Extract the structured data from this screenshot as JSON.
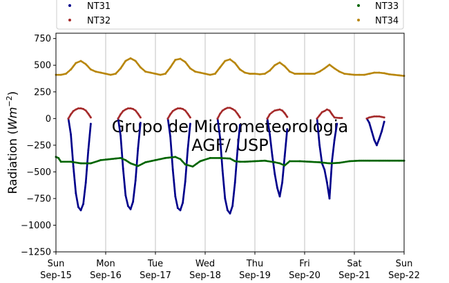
{
  "chart_data": {
    "type": "scatter",
    "ylabel_main": "Radiation (",
    "ylabel_unit_base": "Wm",
    "ylabel_unit_exp": "−2",
    "ylabel_close": ")",
    "xlabel": "",
    "ylim": [
      -1250,
      800
    ],
    "xlim": [
      0,
      7
    ],
    "grid": "vertical-only",
    "legend_location": "top",
    "watermark_lines": [
      "Grupo de Micrometeorologia",
      "AGF/ USP"
    ],
    "x_ticks": [
      {
        "day": "Sun",
        "date": "Sep-15",
        "x": 0
      },
      {
        "day": "Mon",
        "date": "Sep-16",
        "x": 1
      },
      {
        "day": "Tue",
        "date": "Sep-17",
        "x": 2
      },
      {
        "day": "Wed",
        "date": "Sep-18",
        "x": 3
      },
      {
        "day": "Thu",
        "date": "Sep-19",
        "x": 4
      },
      {
        "day": "Fri",
        "date": "Sep-20",
        "x": 5
      },
      {
        "day": "Sat",
        "date": "Sep-21",
        "x": 6
      },
      {
        "day": "Sun",
        "date": "Sep-22",
        "x": 7
      }
    ],
    "y_ticks": [
      750,
      500,
      250,
      0,
      -250,
      -500,
      -750,
      -1000,
      -1250
    ],
    "y_tick_labels": [
      "750",
      "500",
      "250",
      "0",
      "−250",
      "−500",
      "−750",
      "−1000",
      "−1250"
    ],
    "series": [
      {
        "name": "NT31",
        "color": "#00008b",
        "points": [
          [
            0.25,
            0
          ],
          [
            0.3,
            -150
          ],
          [
            0.35,
            -450
          ],
          [
            0.4,
            -700
          ],
          [
            0.45,
            -830
          ],
          [
            0.5,
            -860
          ],
          [
            0.55,
            -800
          ],
          [
            0.6,
            -600
          ],
          [
            0.65,
            -300
          ],
          [
            0.7,
            -50
          ],
          [
            1.25,
            0
          ],
          [
            1.3,
            -160
          ],
          [
            1.35,
            -470
          ],
          [
            1.4,
            -720
          ],
          [
            1.45,
            -820
          ],
          [
            1.5,
            -850
          ],
          [
            1.55,
            -780
          ],
          [
            1.6,
            -580
          ],
          [
            1.65,
            -280
          ],
          [
            1.7,
            -40
          ],
          [
            2.25,
            0
          ],
          [
            2.3,
            -170
          ],
          [
            2.35,
            -480
          ],
          [
            2.4,
            -730
          ],
          [
            2.45,
            -840
          ],
          [
            2.5,
            -860
          ],
          [
            2.55,
            -790
          ],
          [
            2.6,
            -590
          ],
          [
            2.65,
            -290
          ],
          [
            2.7,
            -50
          ],
          [
            3.25,
            0
          ],
          [
            3.3,
            -180
          ],
          [
            3.35,
            -490
          ],
          [
            3.4,
            -750
          ],
          [
            3.45,
            -860
          ],
          [
            3.5,
            -890
          ],
          [
            3.55,
            -820
          ],
          [
            3.6,
            -600
          ],
          [
            3.65,
            -300
          ],
          [
            3.7,
            -60
          ],
          [
            4.25,
            0
          ],
          [
            4.3,
            -150
          ],
          [
            4.35,
            -350
          ],
          [
            4.4,
            -520
          ],
          [
            4.45,
            -650
          ],
          [
            4.5,
            -730
          ],
          [
            4.55,
            -600
          ],
          [
            4.6,
            -350
          ],
          [
            4.65,
            -100
          ],
          [
            5.25,
            0
          ],
          [
            5.3,
            -250
          ],
          [
            5.35,
            -420
          ],
          [
            5.4,
            -480
          ],
          [
            5.45,
            -600
          ],
          [
            5.5,
            -750
          ],
          [
            5.55,
            -400
          ],
          [
            5.6,
            -200
          ],
          [
            5.65,
            -50
          ],
          [
            6.25,
            0
          ],
          [
            6.3,
            -40
          ],
          [
            6.35,
            -120
          ],
          [
            6.4,
            -200
          ],
          [
            6.45,
            -250
          ],
          [
            6.5,
            -190
          ],
          [
            6.55,
            -120
          ],
          [
            6.6,
            -30
          ]
        ]
      },
      {
        "name": "NT32",
        "color": "#a52a2a",
        "points": [
          [
            0.25,
            0
          ],
          [
            0.3,
            40
          ],
          [
            0.35,
            70
          ],
          [
            0.4,
            85
          ],
          [
            0.45,
            95
          ],
          [
            0.5,
            95
          ],
          [
            0.55,
            90
          ],
          [
            0.6,
            75
          ],
          [
            0.65,
            45
          ],
          [
            0.7,
            10
          ],
          [
            1.25,
            0
          ],
          [
            1.3,
            40
          ],
          [
            1.35,
            70
          ],
          [
            1.4,
            85
          ],
          [
            1.45,
            95
          ],
          [
            1.5,
            95
          ],
          [
            1.55,
            90
          ],
          [
            1.6,
            75
          ],
          [
            1.65,
            45
          ],
          [
            1.7,
            10
          ],
          [
            2.25,
            0
          ],
          [
            2.3,
            40
          ],
          [
            2.35,
            70
          ],
          [
            2.4,
            85
          ],
          [
            2.45,
            95
          ],
          [
            2.5,
            95
          ],
          [
            2.55,
            90
          ],
          [
            2.6,
            75
          ],
          [
            2.65,
            45
          ],
          [
            2.7,
            10
          ],
          [
            3.25,
            0
          ],
          [
            3.3,
            45
          ],
          [
            3.35,
            75
          ],
          [
            3.4,
            90
          ],
          [
            3.45,
            100
          ],
          [
            3.5,
            100
          ],
          [
            3.55,
            90
          ],
          [
            3.6,
            75
          ],
          [
            3.65,
            45
          ],
          [
            3.7,
            10
          ],
          [
            4.25,
            0
          ],
          [
            4.3,
            40
          ],
          [
            4.35,
            60
          ],
          [
            4.4,
            75
          ],
          [
            4.45,
            80
          ],
          [
            4.5,
            85
          ],
          [
            4.55,
            75
          ],
          [
            4.6,
            50
          ],
          [
            4.65,
            15
          ],
          [
            5.25,
            0
          ],
          [
            5.3,
            30
          ],
          [
            5.35,
            60
          ],
          [
            5.4,
            70
          ],
          [
            5.45,
            85
          ],
          [
            5.5,
            75
          ],
          [
            5.55,
            40
          ],
          [
            5.6,
            10
          ],
          [
            5.7,
            5
          ],
          [
            5.75,
            5
          ],
          [
            6.25,
            0
          ],
          [
            6.3,
            10
          ],
          [
            6.35,
            15
          ],
          [
            6.4,
            20
          ],
          [
            6.45,
            20
          ],
          [
            6.5,
            20
          ],
          [
            6.55,
            15
          ],
          [
            6.6,
            10
          ]
        ]
      },
      {
        "name": "NT33",
        "color": "#006400",
        "points": [
          [
            0,
            -360
          ],
          [
            0.05,
            -370
          ],
          [
            0.1,
            -405
          ],
          [
            0.3,
            -405
          ],
          [
            0.5,
            -420
          ],
          [
            0.7,
            -420
          ],
          [
            0.9,
            -390
          ],
          [
            1.0,
            -385
          ],
          [
            1.2,
            -375
          ],
          [
            1.3,
            -370
          ],
          [
            1.4,
            -390
          ],
          [
            1.5,
            -420
          ],
          [
            1.65,
            -445
          ],
          [
            1.8,
            -410
          ],
          [
            2.0,
            -390
          ],
          [
            2.2,
            -370
          ],
          [
            2.4,
            -360
          ],
          [
            2.5,
            -380
          ],
          [
            2.6,
            -430
          ],
          [
            2.75,
            -450
          ],
          [
            2.9,
            -400
          ],
          [
            3.1,
            -370
          ],
          [
            3.3,
            -370
          ],
          [
            3.5,
            -375
          ],
          [
            3.6,
            -400
          ],
          [
            3.7,
            -405
          ],
          [
            3.8,
            -405
          ],
          [
            4.0,
            -400
          ],
          [
            4.2,
            -395
          ],
          [
            4.4,
            -410
          ],
          [
            4.5,
            -420
          ],
          [
            4.6,
            -440
          ],
          [
            4.7,
            -400
          ],
          [
            4.9,
            -400
          ],
          [
            5.1,
            -405
          ],
          [
            5.3,
            -410
          ],
          [
            5.5,
            -420
          ],
          [
            5.7,
            -415
          ],
          [
            5.9,
            -400
          ],
          [
            6.1,
            -395
          ],
          [
            6.3,
            -395
          ],
          [
            6.5,
            -395
          ],
          [
            6.7,
            -395
          ],
          [
            6.9,
            -395
          ],
          [
            7.0,
            -395
          ]
        ]
      },
      {
        "name": "NT34",
        "color": "#b8860b",
        "points": [
          [
            0,
            410
          ],
          [
            0.1,
            410
          ],
          [
            0.2,
            420
          ],
          [
            0.3,
            460
          ],
          [
            0.4,
            520
          ],
          [
            0.5,
            540
          ],
          [
            0.6,
            510
          ],
          [
            0.7,
            460
          ],
          [
            0.8,
            440
          ],
          [
            0.9,
            430
          ],
          [
            1.0,
            420
          ],
          [
            1.1,
            410
          ],
          [
            1.2,
            420
          ],
          [
            1.3,
            470
          ],
          [
            1.4,
            540
          ],
          [
            1.5,
            565
          ],
          [
            1.6,
            540
          ],
          [
            1.7,
            480
          ],
          [
            1.8,
            440
          ],
          [
            1.9,
            430
          ],
          [
            2.0,
            420
          ],
          [
            2.1,
            410
          ],
          [
            2.2,
            420
          ],
          [
            2.3,
            480
          ],
          [
            2.4,
            550
          ],
          [
            2.5,
            560
          ],
          [
            2.6,
            530
          ],
          [
            2.7,
            470
          ],
          [
            2.8,
            440
          ],
          [
            2.9,
            430
          ],
          [
            3.0,
            420
          ],
          [
            3.1,
            410
          ],
          [
            3.2,
            420
          ],
          [
            3.3,
            480
          ],
          [
            3.4,
            540
          ],
          [
            3.5,
            555
          ],
          [
            3.6,
            520
          ],
          [
            3.7,
            460
          ],
          [
            3.8,
            430
          ],
          [
            3.9,
            420
          ],
          [
            4.0,
            420
          ],
          [
            4.1,
            415
          ],
          [
            4.2,
            420
          ],
          [
            4.3,
            450
          ],
          [
            4.4,
            500
          ],
          [
            4.5,
            525
          ],
          [
            4.6,
            490
          ],
          [
            4.7,
            440
          ],
          [
            4.8,
            420
          ],
          [
            4.9,
            420
          ],
          [
            5.0,
            420
          ],
          [
            5.1,
            420
          ],
          [
            5.2,
            420
          ],
          [
            5.3,
            440
          ],
          [
            5.4,
            470
          ],
          [
            5.5,
            505
          ],
          [
            5.6,
            470
          ],
          [
            5.7,
            440
          ],
          [
            5.8,
            420
          ],
          [
            5.9,
            415
          ],
          [
            6.0,
            410
          ],
          [
            6.1,
            410
          ],
          [
            6.2,
            410
          ],
          [
            6.3,
            420
          ],
          [
            6.4,
            430
          ],
          [
            6.5,
            430
          ],
          [
            6.6,
            425
          ],
          [
            6.7,
            415
          ],
          [
            6.8,
            410
          ],
          [
            6.9,
            405
          ],
          [
            7.0,
            400
          ]
        ]
      }
    ]
  }
}
